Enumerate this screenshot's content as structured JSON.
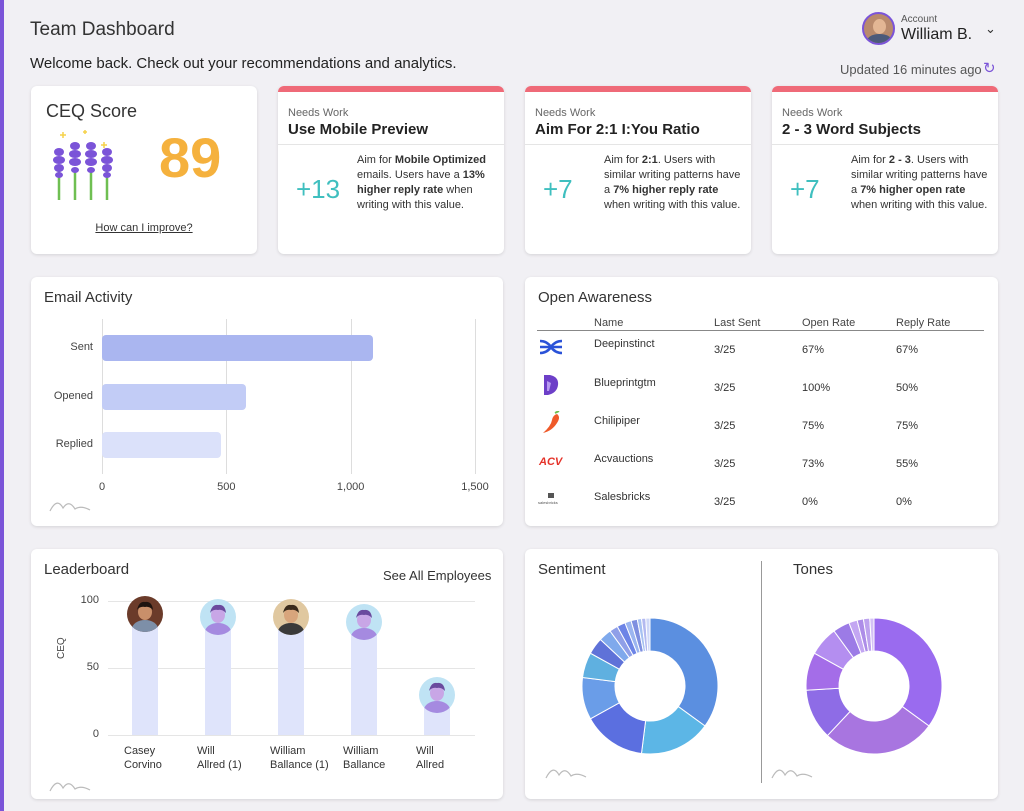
{
  "header": {
    "title": "Team Dashboard",
    "welcome": "Welcome back. Check out your recommendations and analytics.",
    "updated": "Updated 16 minutes ago"
  },
  "account": {
    "label": "Account",
    "name": "William B."
  },
  "ceq": {
    "title": "CEQ Score",
    "score": "89",
    "link": "How can I improve?"
  },
  "recommendations": [
    {
      "status": "Needs Work",
      "title": "Use Mobile Preview",
      "delta": "+13",
      "desc_pre": "Aim for ",
      "desc_bold1": "Mobile Optimized",
      "desc_mid": " emails. Users have a ",
      "desc_bold2": "13% higher reply rate",
      "desc_post": " when writing with this value."
    },
    {
      "status": "Needs Work",
      "title": "Aim For 2:1 I:You Ratio",
      "delta": "+7",
      "desc_pre": "Aim for ",
      "desc_bold1": "2:1",
      "desc_mid": ". Users with similar writing patterns have a ",
      "desc_bold2": "7% higher reply rate",
      "desc_post": " when writing with this value."
    },
    {
      "status": "Needs Work",
      "title": "2 - 3 Word Subjects",
      "delta": "+7",
      "desc_pre": "Aim for ",
      "desc_bold1": "2 - 3",
      "desc_mid": ". Users with similar writing patterns have a ",
      "desc_bold2": "7% higher open rate",
      "desc_post": " when writing with this value."
    }
  ],
  "email_activity": {
    "title": "Email Activity",
    "chart_data": {
      "type": "bar",
      "orientation": "horizontal",
      "categories": [
        "Sent",
        "Opened",
        "Replied"
      ],
      "values": [
        1090,
        580,
        480
      ],
      "xlim": [
        0,
        1500
      ],
      "ticks": [
        "0",
        "500",
        "1,000",
        "1,500"
      ],
      "tick_values": [
        0,
        500,
        1000,
        1500
      ],
      "colors": [
        "#aab6f0",
        "#c2ccf6",
        "#dbe1fa"
      ]
    }
  },
  "open_awareness": {
    "title": "Open Awareness",
    "columns": [
      "Name",
      "Last Sent",
      "Open Rate",
      "Reply Rate"
    ],
    "rows": [
      {
        "logo": "deepinstinct-logo",
        "name": "Deepinstinct",
        "last_sent": "3/25",
        "open_rate": "67%",
        "reply_rate": "67%"
      },
      {
        "logo": "blueprintgtm-logo",
        "name": "Blueprintgtm",
        "last_sent": "3/25",
        "open_rate": "100%",
        "reply_rate": "50%"
      },
      {
        "logo": "chilipiper-logo",
        "name": "Chilipiper",
        "last_sent": "3/25",
        "open_rate": "75%",
        "reply_rate": "75%"
      },
      {
        "logo": "acvauctions-logo",
        "name": "Acvauctions",
        "last_sent": "3/25",
        "open_rate": "73%",
        "reply_rate": "55%"
      },
      {
        "logo": "salesbricks-logo",
        "name": "Salesbricks",
        "last_sent": "3/25",
        "open_rate": "0%",
        "reply_rate": "0%"
      }
    ],
    "logo_text": {
      "acv": "ACV",
      "salesbricks": "salesbricks"
    }
  },
  "leaderboard": {
    "title": "Leaderboard",
    "see_all": "See All Employees",
    "ylabel": "CEQ",
    "chart_data": {
      "type": "bar",
      "categories": [
        "Casey Corvino",
        "Will Allred (1)",
        "William Ballance (1)",
        "William Ballance",
        "Will Allred"
      ],
      "name_lines": [
        [
          "Casey",
          "Corvino"
        ],
        [
          "Will",
          "Allred (1)"
        ],
        [
          "William",
          "Ballance (1)"
        ],
        [
          "William",
          "Ballance"
        ],
        [
          "Will",
          "Allred"
        ]
      ],
      "values": [
        90,
        88,
        88,
        84,
        30
      ],
      "ylim": [
        0,
        100
      ],
      "yticks": [
        100,
        50,
        0
      ]
    }
  },
  "sentiment": {
    "title": "Sentiment",
    "chart_data": {
      "type": "pie",
      "donut": true,
      "values": [
        35,
        17,
        15,
        10,
        6,
        4,
        3,
        2,
        2,
        1.5,
        1.5,
        1,
        1,
        1
      ],
      "colors": [
        "#5b8fe0",
        "#5cb6e6",
        "#5b6fe0",
        "#6a9de8",
        "#5fb0e0",
        "#5f72d8",
        "#7fa9ec",
        "#8f9fe8",
        "#6d84e6",
        "#9bb5f0",
        "#7e8fe0",
        "#a7c1f2",
        "#b3b9f0",
        "#cfd8f8"
      ]
    }
  },
  "tones": {
    "title": "Tones",
    "chart_data": {
      "type": "pie",
      "donut": true,
      "values": [
        35,
        27,
        12,
        9,
        7,
        4,
        2,
        1.5,
        1.5,
        1
      ],
      "colors": [
        "#9a6bef",
        "#a875e0",
        "#8e6ce6",
        "#a46de8",
        "#b48ef0",
        "#9c7be6",
        "#c3a6f2",
        "#ad8de8",
        "#bda2ee",
        "#d4c1f6"
      ]
    }
  }
}
